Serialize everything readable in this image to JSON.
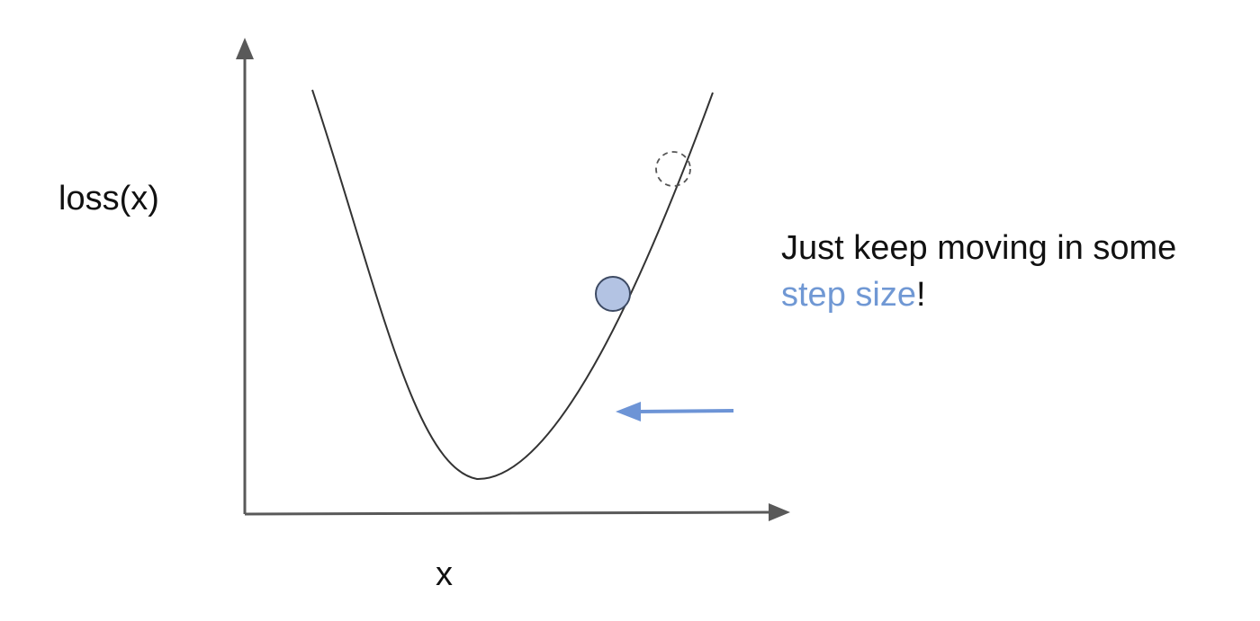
{
  "labels": {
    "y_axis": "loss(x)",
    "x_axis": "x"
  },
  "caption": {
    "line1": "Just keep moving in some",
    "highlight": "step size",
    "suffix": "!"
  },
  "colors": {
    "axis": "#595959",
    "curve": "#333333",
    "point_fill": "#b3c3e3",
    "point_stroke": "#3d4a63",
    "ghost_point": "#555555",
    "arrow": "#6d94d6",
    "accent_text": "#7098d4"
  }
}
